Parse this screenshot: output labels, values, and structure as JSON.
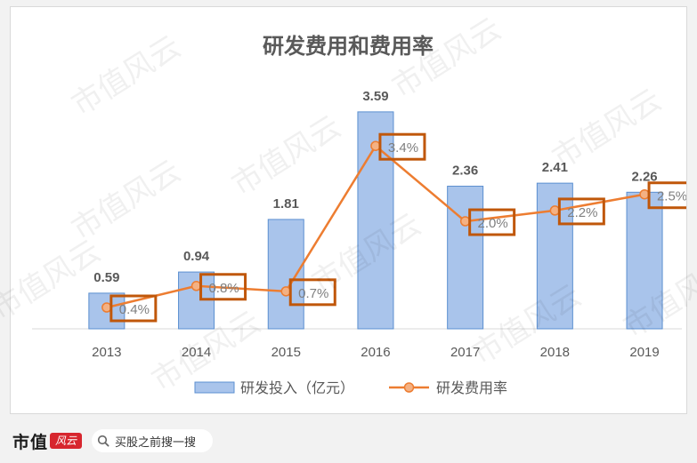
{
  "chart_data": {
    "type": "bar",
    "title": "研发费用和费用率",
    "categories": [
      "2013",
      "2014",
      "2015",
      "2016",
      "2017",
      "2018",
      "2019"
    ],
    "series": [
      {
        "name": "研发投入（亿元）",
        "type": "bar",
        "values": [
          0.59,
          0.94,
          1.81,
          3.59,
          2.36,
          2.41,
          2.26
        ],
        "labels": [
          "0.59",
          "0.94",
          "1.81",
          "3.59",
          "2.36",
          "2.41",
          "2.26"
        ]
      },
      {
        "name": "研发费用率",
        "type": "line",
        "values": [
          0.4,
          0.8,
          0.7,
          3.4,
          2.0,
          2.2,
          2.5
        ],
        "labels": [
          "0.4%",
          "0.8%",
          "0.7%",
          "3.4%",
          "2.0%",
          "2.2%",
          "2.5%"
        ]
      }
    ],
    "legend_position": "bottom",
    "grid": false
  },
  "colors": {
    "bar_fill": "#a9c4eb",
    "bar_stroke": "#5b8fd0",
    "line": "#ed7d31",
    "highlight_box": "#c0570a",
    "title": "#595959",
    "data_label": "#595959"
  },
  "footer": {
    "brand": "市值",
    "brand_logo": "风云",
    "search_icon": "search-icon",
    "search_text": "买股之前搜一搜"
  },
  "watermark": "市值风云"
}
